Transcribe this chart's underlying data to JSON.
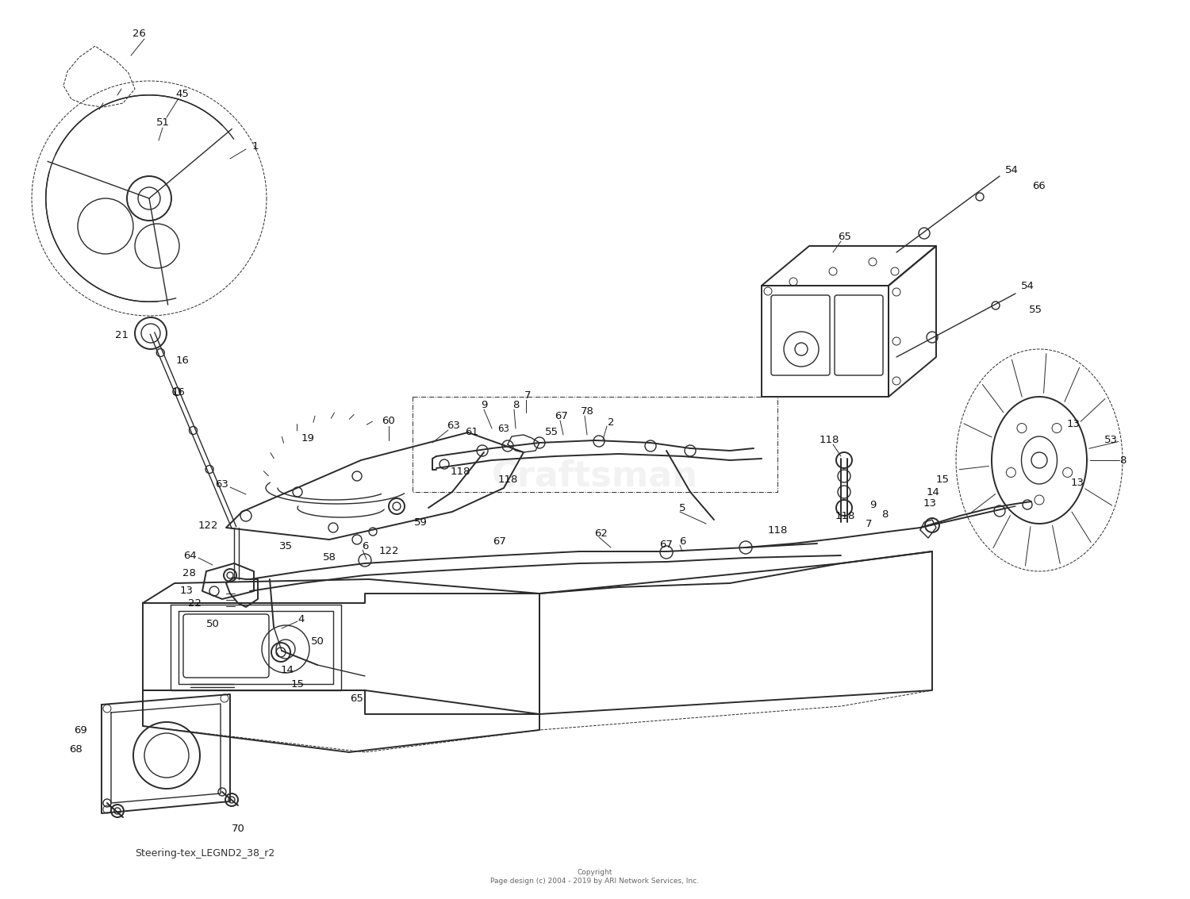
{
  "bottom_left_text": "Steering-tex_LEGND2_38_r2",
  "copyright_text": "Copyright\nPage design (c) 2004 - 2019 by ARI Network Services, Inc.",
  "bg_color": "#ffffff",
  "line_color": "#2a2a2a",
  "label_color": "#111111",
  "watermark_text": "Craftsman",
  "fig_width": 15.0,
  "fig_height": 11.33,
  "dpi": 100
}
